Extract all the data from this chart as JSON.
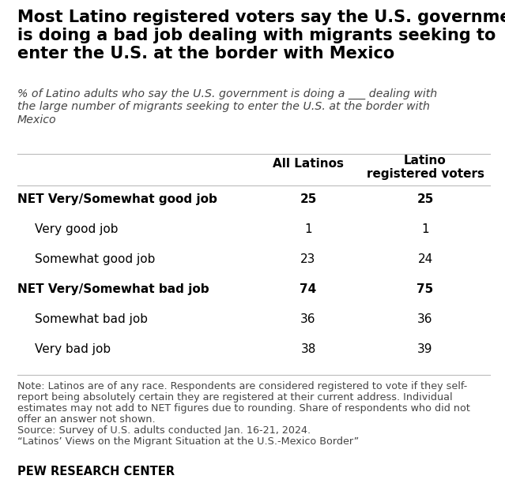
{
  "title": "Most Latino registered voters say the U.S. government\nis doing a bad job dealing with migrants seeking to\nenter the U.S. at the border with Mexico",
  "subtitle": "% of Latino adults who say the U.S. government is doing a ___ dealing with\nthe large number of migrants seeking to enter the U.S. at the border with\nMexico",
  "col1_header": "All Latinos",
  "col2_header": "Latino\nregistered voters",
  "rows": [
    {
      "label": "NET Very/Somewhat good job",
      "val1": "25",
      "val2": "25",
      "bold": true,
      "indent": false
    },
    {
      "label": "Very good job",
      "val1": "1",
      "val2": "1",
      "bold": false,
      "indent": true
    },
    {
      "label": "Somewhat good job",
      "val1": "23",
      "val2": "24",
      "bold": false,
      "indent": true
    },
    {
      "label": "NET Very/Somewhat bad job",
      "val1": "74",
      "val2": "75",
      "bold": true,
      "indent": false
    },
    {
      "label": "Somewhat bad job",
      "val1": "36",
      "val2": "36",
      "bold": false,
      "indent": true
    },
    {
      "label": "Very bad job",
      "val1": "38",
      "val2": "39",
      "bold": false,
      "indent": true
    }
  ],
  "note_lines": [
    "Note: Latinos are of any race. Respondents are considered registered to vote if they self-",
    "report being absolutely certain they are registered at their current address. Individual",
    "estimates may not add to NET figures due to rounding. Share of respondents who did not",
    "offer an answer not shown.",
    "Source: Survey of U.S. adults conducted Jan. 16-21, 2024.",
    "“Latinos’ Views on the Migrant Situation at the U.S.-Mexico Border”"
  ],
  "footer": "PEW RESEARCH CENTER",
  "bg_color": "#FFFFFF",
  "text_color": "#000000",
  "note_color": "#444444",
  "line_color": "#BBBBBB",
  "title_fontsize": 15.0,
  "subtitle_fontsize": 10.2,
  "header_fontsize": 11.0,
  "row_fontsize": 11.0,
  "note_fontsize": 9.2,
  "footer_fontsize": 10.5
}
